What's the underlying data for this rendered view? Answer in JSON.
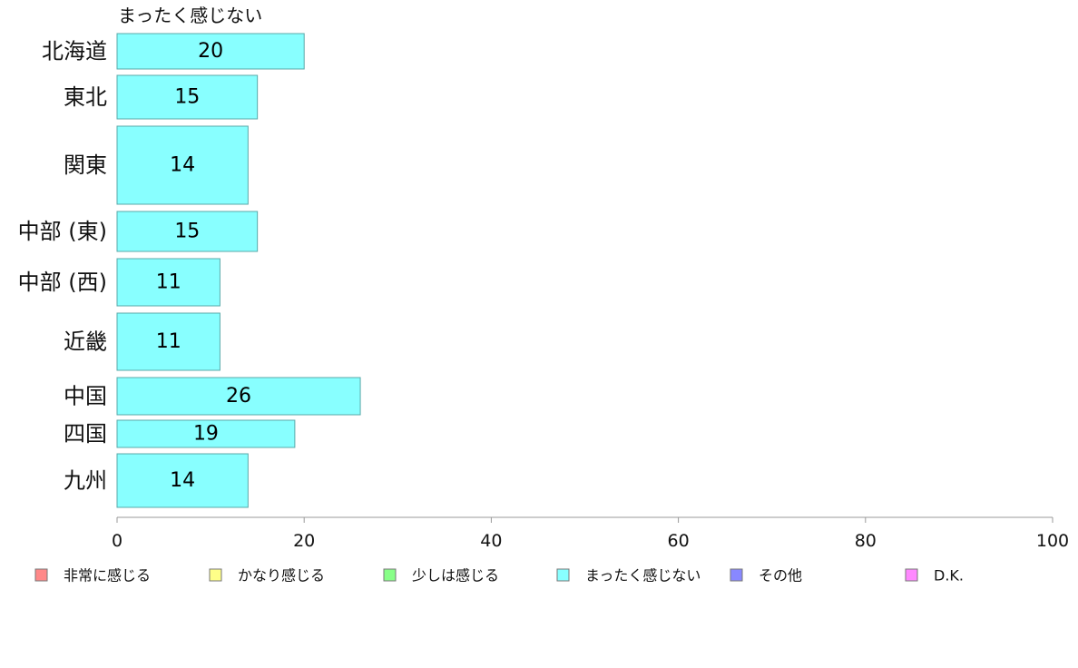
{
  "chart_data": {
    "type": "bar",
    "orientation": "horizontal",
    "series_title": "まったく感じない",
    "categories": [
      "北海道",
      "東北",
      "関東",
      "中部 (東)",
      "中部 (西)",
      "近畿",
      "中国",
      "四国",
      "九州"
    ],
    "series": [
      {
        "name": "まったく感じない",
        "color": "#88ffff",
        "values": [
          20,
          15,
          14,
          15,
          11,
          11,
          26,
          19,
          14
        ]
      }
    ],
    "xlim": [
      0,
      100
    ],
    "xticks": [
      0,
      20,
      40,
      60,
      80,
      100
    ],
    "grid": false,
    "legend_position": "bottom",
    "legend": [
      {
        "label": "非常に感じる",
        "color": "#ff8888"
      },
      {
        "label": "かなり感じる",
        "color": "#ffff88"
      },
      {
        "label": "少しは感じる",
        "color": "#88ff88"
      },
      {
        "label": "まったく感じない",
        "color": "#88ffff"
      },
      {
        "label": "その他",
        "color": "#8888ff"
      },
      {
        "label": "D.K.",
        "color": "#ff88ff"
      }
    ]
  }
}
